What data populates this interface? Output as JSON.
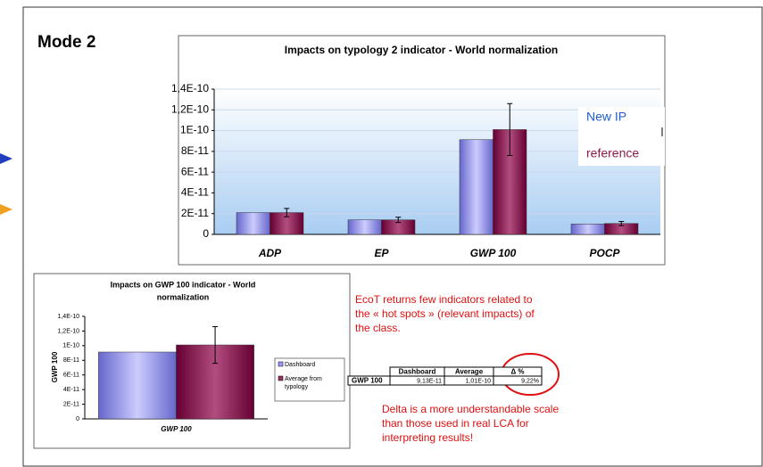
{
  "title": "Mode 2",
  "chart_data": [
    {
      "type": "bar",
      "title": "Impacts on typology 2 indicator - World normalization",
      "categories": [
        "ADP",
        "EP",
        "GWP 100",
        "POCP"
      ],
      "series": [
        {
          "name": "New IP",
          "color": "#9999ff",
          "values": [
            2.1e-11,
            1.4e-11,
            9.13e-11,
            1e-11
          ]
        },
        {
          "name": "reference",
          "color": "#993366",
          "values": [
            2.1e-11,
            1.4e-11,
            1.01e-10,
            1.05e-11
          ],
          "errors": [
            4e-12,
            2.5e-12,
            2.5e-11,
            2e-12
          ]
        }
      ],
      "ylim": [
        0,
        1.4e-10
      ],
      "yticks": [
        0,
        {
          "value": 2e-11,
          "label": "2E-11"
        },
        {
          "value": 4e-11,
          "label": "4E-11"
        },
        {
          "value": 6e-11,
          "label": "6E-11"
        },
        {
          "value": 8e-11,
          "label": "8E-11"
        },
        {
          "value": 1e-10,
          "label": "1E-10"
        },
        {
          "value": 1.2e-10,
          "label": "1,2E-10"
        },
        {
          "value": 1.4e-10,
          "label": "1,4E-10"
        }
      ],
      "grid": true
    },
    {
      "type": "bar",
      "title_lines": [
        "Impacts on GWP 100 indicator - World",
        "normalization"
      ],
      "y_label": "GWP 100",
      "categories": [
        "GWP 100"
      ],
      "series": [
        {
          "name": "Dashboard",
          "color": "#9999ff",
          "values": [
            9.13e-11
          ]
        },
        {
          "name_lines": [
            "Average from",
            "typology"
          ],
          "color": "#993366",
          "values": [
            1.01e-10
          ],
          "errors": [
            2.5e-11
          ]
        }
      ],
      "ylim": [
        0,
        1.4e-10
      ],
      "yticks": [
        0,
        {
          "value": 2e-11,
          "label": "2E-11"
        },
        {
          "value": 4e-11,
          "label": "4E-11"
        },
        {
          "value": 6e-11,
          "label": "6E-11"
        },
        {
          "value": 8e-11,
          "label": "8E-11"
        },
        {
          "value": 1e-10,
          "label": "1E-10"
        },
        {
          "value": 1.2e-10,
          "label": "1,2E-10"
        },
        {
          "value": 1.4e-10,
          "label": "1,4E-10"
        }
      ],
      "grid": false
    }
  ],
  "table": {
    "columns": [
      "Dashboard",
      "Average",
      "Δ %"
    ],
    "rows": [
      {
        "label": "GWP 100",
        "cells": [
          "9,13E-11",
          "1,01E-10",
          "9,22%"
        ]
      }
    ]
  },
  "notes": [
    [
      "EcoT returns few indicators related to",
      "the « hot spots » (relevant impacts) of",
      "the class."
    ],
    [
      "Delta is a more understandable scale",
      "than those used in real LCA for",
      "interpreting results!"
    ]
  ]
}
